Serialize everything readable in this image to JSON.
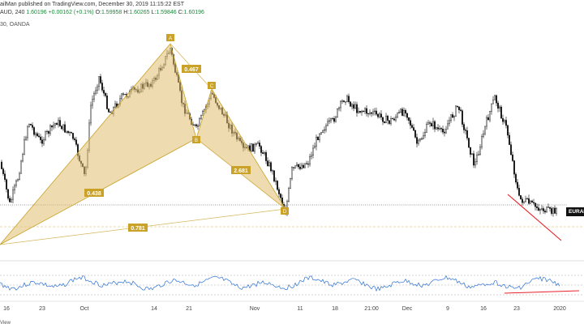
{
  "header": {
    "line1": "ailMan published on TradingView.com, December 30, 2019 11:15:22 EST",
    "symbol": "AUD, 240",
    "last": "1.60196",
    "change": "+0.00162 (+0.1%)",
    "o_label": "O:",
    "o_value": "1.59958",
    "h_label": "H:",
    "h_value": "1.60265",
    "l_label": "L:",
    "l_value": "1.59846",
    "c_label": "C:",
    "c_value": "1.60196",
    "line3": "30, OANDA"
  },
  "pattern": {
    "points": [
      {
        "label": "A"
      },
      {
        "label": "B"
      },
      {
        "label": "C"
      },
      {
        "label": "D"
      }
    ],
    "fib_labels": [
      "0.467",
      "0.438",
      "2.681",
      "0.781"
    ]
  },
  "price_tag": "EURAL",
  "x_axis": [
    "16",
    "23",
    "Oct",
    "14",
    "21",
    "Nov",
    "11",
    "18",
    "21:00",
    "Dec",
    "9",
    "16",
    "23",
    "2020"
  ],
  "footer": "View",
  "colors": {
    "harmonic_fill": "#e0c070",
    "harmonic_line": "#c9a227",
    "candles": "#111111",
    "rsi": "#2b6fd6",
    "trendline": "#e8202a"
  },
  "chart_data": {
    "type": "candlestick",
    "title": "",
    "xlabel": "",
    "ylabel": "",
    "x_ticks": [
      "16",
      "23",
      "Oct",
      "14",
      "21",
      "Nov",
      "11",
      "18",
      "21:00",
      "Dec",
      "9",
      "16",
      "23",
      "2020"
    ],
    "last_price": 1.60196,
    "patterns": [
      {
        "name": "harmonic XABCD",
        "ratios": [
          0.467,
          0.438,
          2.681,
          0.781
        ]
      }
    ],
    "indicator": "RSI"
  }
}
